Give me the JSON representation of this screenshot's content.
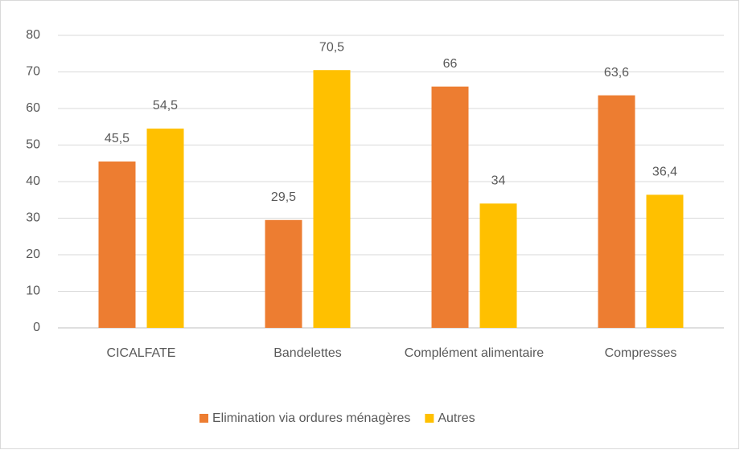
{
  "chart_data": {
    "type": "bar",
    "categories": [
      "CICALFATE",
      "Bandelettes",
      "Complément alimentaire",
      "Compresses"
    ],
    "series": [
      {
        "name": "Elimination via ordures ménagères",
        "color": "#ed7d31",
        "values": [
          45.5,
          29.5,
          66,
          63.6
        ],
        "value_labels": [
          "45,5",
          "29,5",
          "66",
          "63,6"
        ]
      },
      {
        "name": "Autres",
        "color": "#ffc000",
        "values": [
          54.5,
          70.5,
          34,
          36.4
        ],
        "value_labels": [
          "54,5",
          "70,5",
          "34",
          "36,4"
        ]
      }
    ],
    "ylim": [
      0,
      80
    ],
    "yticks": [
      0,
      10,
      20,
      30,
      40,
      50,
      60,
      70,
      80
    ],
    "grid": true,
    "legend": "bottom"
  }
}
